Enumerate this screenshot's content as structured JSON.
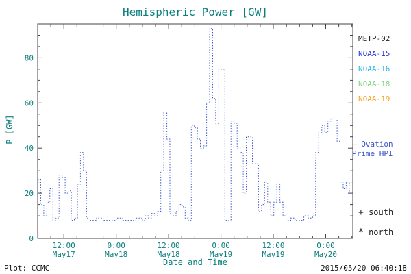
{
  "colors": {
    "axis_text": "#0b7e7e",
    "box": "#444444",
    "line": "#3a55cc",
    "footer": "#111111"
  },
  "chart_data": {
    "type": "line",
    "step": true,
    "title": "Hemispheric Power [GW]",
    "xlabel": "Date and Time",
    "ylabel": "P [GW]",
    "ylim": [
      0,
      95
    ],
    "xlim_hours": [
      0,
      72.2
    ],
    "x_unit": "hours",
    "grid": false,
    "y_ticks": [
      0,
      20,
      40,
      60,
      80
    ],
    "x_ticks": [
      {
        "t": 6,
        "time": "12:00",
        "date": "May17"
      },
      {
        "t": 18,
        "time": "0:00",
        "date": "May18"
      },
      {
        "t": 30,
        "time": "12:00",
        "date": "May18"
      },
      {
        "t": 42,
        "time": "0:00",
        "date": "May19"
      },
      {
        "t": 54,
        "time": "12:00",
        "date": "May19"
      },
      {
        "t": 66,
        "time": "0:00",
        "date": "May20"
      }
    ],
    "series": [
      {
        "name": "Ovation Prime HPI",
        "color": "#3a55cc",
        "style": "dotted-step",
        "points": [
          [
            0,
            26
          ],
          [
            0.7,
            15
          ],
          [
            1.4,
            10
          ],
          [
            2.1,
            16
          ],
          [
            2.8,
            22
          ],
          [
            3.5,
            8
          ],
          [
            4.2,
            9
          ],
          [
            4.9,
            28
          ],
          [
            5.6,
            27
          ],
          [
            6.3,
            20
          ],
          [
            7,
            21
          ],
          [
            7.7,
            8
          ],
          [
            8.4,
            9
          ],
          [
            9.1,
            24
          ],
          [
            9.8,
            38
          ],
          [
            10.5,
            30
          ],
          [
            11.2,
            9
          ],
          [
            12,
            8
          ],
          [
            13.5,
            9
          ],
          [
            15,
            8
          ],
          [
            16.5,
            8
          ],
          [
            18,
            9
          ],
          [
            19.5,
            8
          ],
          [
            21,
            8
          ],
          [
            22.5,
            9
          ],
          [
            24,
            8
          ],
          [
            24.7,
            10
          ],
          [
            25.4,
            9
          ],
          [
            26.1,
            11
          ],
          [
            26.8,
            10
          ],
          [
            27.5,
            12
          ],
          [
            28.2,
            30
          ],
          [
            28.9,
            56
          ],
          [
            29.6,
            44
          ],
          [
            30.3,
            11
          ],
          [
            31,
            10
          ],
          [
            31.7,
            12
          ],
          [
            32.4,
            15
          ],
          [
            33.1,
            14
          ],
          [
            33.8,
            9
          ],
          [
            34.5,
            8
          ],
          [
            35.2,
            50
          ],
          [
            35.9,
            49
          ],
          [
            36.6,
            44
          ],
          [
            37.3,
            40
          ],
          [
            38,
            41
          ],
          [
            38.7,
            60
          ],
          [
            39.4,
            93
          ],
          [
            40.1,
            62
          ],
          [
            40.8,
            51
          ],
          [
            41.5,
            75
          ],
          [
            42.2,
            75
          ],
          [
            42.9,
            8
          ],
          [
            43.6,
            8
          ],
          [
            44.3,
            52
          ],
          [
            45,
            51
          ],
          [
            45.7,
            40
          ],
          [
            46.4,
            38
          ],
          [
            47.1,
            20
          ],
          [
            47.8,
            45
          ],
          [
            48.5,
            45
          ],
          [
            49.2,
            33
          ],
          [
            49.9,
            33
          ],
          [
            50.6,
            12
          ],
          [
            51.3,
            15
          ],
          [
            52,
            25
          ],
          [
            52.7,
            16
          ],
          [
            53.4,
            10
          ],
          [
            54.1,
            16
          ],
          [
            54.8,
            25
          ],
          [
            55.5,
            16
          ],
          [
            56.2,
            10
          ],
          [
            56.9,
            8
          ],
          [
            58,
            9
          ],
          [
            59,
            8
          ],
          [
            60,
            8
          ],
          [
            61,
            10
          ],
          [
            62,
            9
          ],
          [
            63,
            10
          ],
          [
            63.7,
            38
          ],
          [
            64.4,
            47
          ],
          [
            65.1,
            50
          ],
          [
            65.8,
            47
          ],
          [
            66.5,
            52
          ],
          [
            67.2,
            53
          ],
          [
            67.9,
            53
          ],
          [
            68.6,
            43
          ],
          [
            69.3,
            25
          ],
          [
            70,
            22
          ],
          [
            70.7,
            25
          ],
          [
            71.4,
            20
          ]
        ]
      }
    ]
  },
  "legend": {
    "satellites": [
      {
        "label": "METP-02",
        "color": "#222222"
      },
      {
        "label": "NOAA-15",
        "color": "#2233dd"
      },
      {
        "label": "NOAA-16",
        "color": "#29b6e8"
      },
      {
        "label": "NOAA-18",
        "color": "#7ed87e"
      },
      {
        "label": "NOAA-19",
        "color": "#f5a328"
      }
    ],
    "hpi": {
      "marker": "–",
      "line1": "Ovation",
      "line2": "Prime HPI",
      "color": "#3a55cc"
    },
    "markers": [
      {
        "symbol": "+",
        "label": "south"
      },
      {
        "symbol": "*",
        "label": "north"
      }
    ]
  },
  "footer": {
    "left": "Plot: CCMC",
    "right": "2015/05/20 06:40:18"
  }
}
